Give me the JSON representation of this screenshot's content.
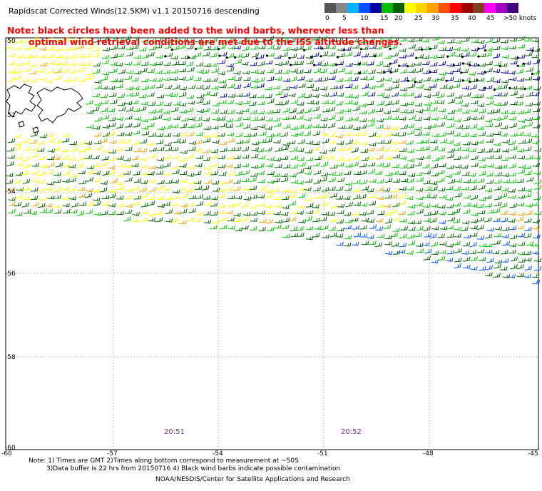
{
  "header": {
    "title": "Rapidscat Corrected Winds(12.5KM) v1.1 20150716 descending",
    "note_line1": "Note: black circles have been added to the wind barbs, wherever less than",
    "note_line2": "optimal wind retrieval conditions are met due to the ISS altitude changes."
  },
  "legend": {
    "colors": [
      "#555555",
      "#888888",
      "#00b4ff",
      "#0050ff",
      "#0000a0",
      "#00c000",
      "#006000",
      "#ffff00",
      "#ffd200",
      "#ffa000",
      "#ff5000",
      "#ff0000",
      "#a00000",
      "#804020",
      "#ff00ff",
      "#a000c0",
      "#400080"
    ],
    "labels": [
      "0",
      "5",
      "10",
      "15",
      "20",
      "25",
      "30",
      "35",
      "40",
      "45",
      ">50 knots"
    ]
  },
  "axes": {
    "y_labels": [
      "-50",
      "-52",
      "-54",
      "-56",
      "-58",
      "-60"
    ],
    "x_labels": [
      "-60",
      "-57",
      "-54",
      "-51",
      "-48",
      "-45"
    ]
  },
  "times": [
    "20:51",
    "20:52"
  ],
  "footer": {
    "line1": "Note: 1) Times are GMT 2)Times along bottom correspond to measurement at ~50S",
    "line2": "3)Data buffer is 22 hrs from 20150716 4) Black wind barbs indicate possible contamination",
    "credit": "NOAA/NESDIS/Center for Satellite Applications and Research"
  }
}
